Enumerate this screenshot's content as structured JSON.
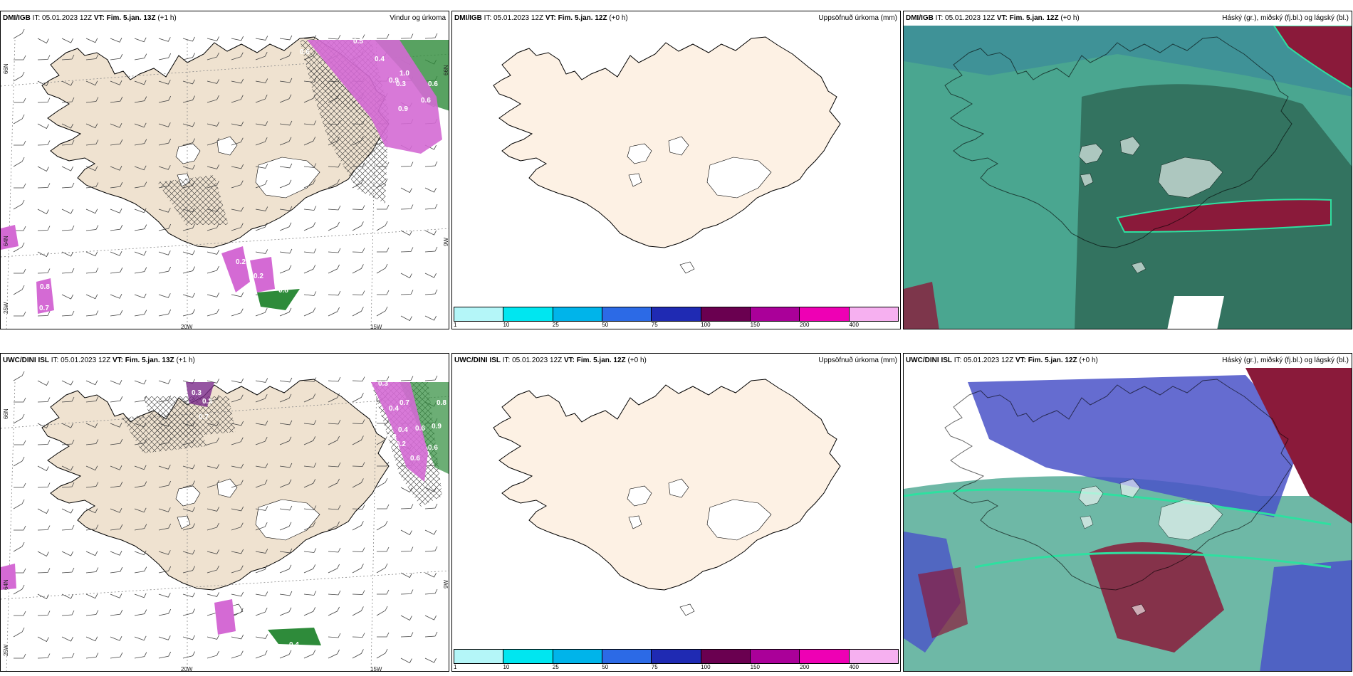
{
  "panels": [
    {
      "id": "p1",
      "model": "DMI/IGB",
      "it_label": "IT:",
      "it": "05.01.2023 12Z",
      "vt_label": "VT:",
      "vt": "Fim. 5.jan. 13Z",
      "lead": "(+1 h)",
      "title": "Vindur og úrkoma",
      "kind": "wind",
      "values": [
        "0.8",
        "0.9",
        "0.3",
        "0.6",
        "0.6",
        "0.9",
        "0.4",
        "0.6",
        "0.5",
        "0.2",
        "0.2",
        "0.8",
        "0.7",
        "0.8",
        "1.0"
      ]
    },
    {
      "id": "p2",
      "model": "DMI/IGB",
      "it_label": "IT:",
      "it": "05.01.2023 12Z",
      "vt_label": "VT:",
      "vt": "Fim. 5.jan. 12Z",
      "lead": "(+0 h)",
      "title": "Uppsöfnuð úrkoma (mm)",
      "kind": "precip"
    },
    {
      "id": "p3",
      "model": "DMI/IGB",
      "it_label": "IT:",
      "it": "05.01.2023 12Z",
      "vt_label": "VT:",
      "vt": "Fim. 5.jan. 12Z",
      "lead": "(+0 h)",
      "title": "Háský (gr.), miðský (fj.bl.) og lágský (bl.)",
      "kind": "cloud"
    },
    {
      "id": "p4",
      "model": "UWC/DINI ISL",
      "it_label": "IT:",
      "it": "05.01.2023 12Z",
      "vt_label": "VT:",
      "vt": "Fim. 5.jan. 13Z",
      "lead": "(+1 h)",
      "title": "",
      "kind": "wind",
      "values": [
        "0.3",
        "0.3",
        "0.4",
        "0.7",
        "0.3",
        "0.7",
        "0.4",
        "0.4",
        "0.6",
        "0.3",
        "0.2",
        "0.6",
        "0.8",
        "0.9",
        "0.6",
        "0.4",
        "0.6",
        "0.3"
      ]
    },
    {
      "id": "p5",
      "model": "UWC/DINI ISL",
      "it_label": "IT:",
      "it": "05.01.2023 12Z",
      "vt_label": "VT:",
      "vt": "Fim. 5.jan. 12Z",
      "lead": "(+0 h)",
      "title": "Uppsöfnuð úrkoma (mm)",
      "kind": "precip"
    },
    {
      "id": "p6",
      "model": "UWC/DINI ISL",
      "it_label": "IT:",
      "it": "05.01.2023 12Z",
      "vt_label": "VT:",
      "vt": "Fim. 5.jan. 12Z",
      "lead": "(+0 h)",
      "title": "Háský (gr.), miðský (fj.bl.) og lágský (bl.)",
      "kind": "cloud"
    }
  ],
  "axis": {
    "lat66": "66N",
    "lat64": "64N",
    "lon20": "20W",
    "lon15": "15W",
    "lon25": "25W",
    "lon9": "9W"
  },
  "precip_scale": {
    "ticks": [
      "1",
      "10",
      "25",
      "50",
      "75",
      "100",
      "150",
      "200",
      "400"
    ],
    "colors": [
      "#b4f6f8",
      "#00e6f0",
      "#00b4ea",
      "#2c6ae6",
      "#1f2ab3",
      "#6a0050",
      "#aa0099",
      "#ee00b4",
      "#f6b0f0"
    ]
  },
  "colors": {
    "land": "#efe2d0",
    "land_precip": "#fdf1e4",
    "pink": "#d46ad4",
    "purple": "#7a2a8a",
    "green": "#2e8b3a",
    "teal": "#4aa690",
    "darkgreen": "#2f6a58",
    "maroon": "#8a1a3a",
    "blue": "#4a52c8"
  }
}
